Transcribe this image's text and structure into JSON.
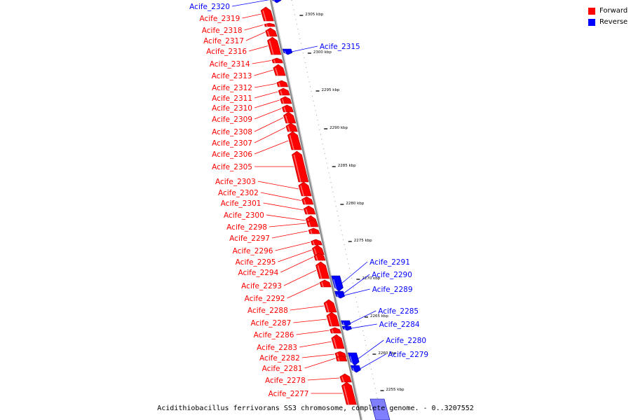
{
  "caption": "Acidithiobacillus ferrivorans SS3 chromosome, complete genome. - 0..3207552",
  "legend": [
    {
      "label": "Forward",
      "color": "#ff0000"
    },
    {
      "label": "Reverse",
      "color": "#0000ff"
    }
  ],
  "colors": {
    "forward": "#ff0000",
    "reverse": "#0000ff",
    "backbone": "#808080"
  },
  "ticks": [
    "2305 kbp",
    "2300 kbp",
    "2295 kbp",
    "2290 kbp",
    "2285 kbp",
    "2280 kbp",
    "2275 kbp",
    "2270 kbp",
    "2265 kbp",
    "2260 kbp",
    "2255 kbp"
  ],
  "genes": [
    {
      "name": "Acife_2320",
      "strand": "reverse"
    },
    {
      "name": "Acife_2319",
      "strand": "forward"
    },
    {
      "name": "Acife_2318",
      "strand": "forward"
    },
    {
      "name": "Acife_2317",
      "strand": "forward"
    },
    {
      "name": "Acife_2316",
      "strand": "forward"
    },
    {
      "name": "Acife_2315",
      "strand": "reverse"
    },
    {
      "name": "Acife_2314",
      "strand": "forward"
    },
    {
      "name": "Acife_2313",
      "strand": "forward"
    },
    {
      "name": "Acife_2312",
      "strand": "forward"
    },
    {
      "name": "Acife_2311",
      "strand": "forward"
    },
    {
      "name": "Acife_2310",
      "strand": "forward"
    },
    {
      "name": "Acife_2309",
      "strand": "forward"
    },
    {
      "name": "Acife_2308",
      "strand": "forward"
    },
    {
      "name": "Acife_2307",
      "strand": "forward"
    },
    {
      "name": "Acife_2306",
      "strand": "forward"
    },
    {
      "name": "Acife_2305",
      "strand": "forward"
    },
    {
      "name": "Acife_2303",
      "strand": "forward"
    },
    {
      "name": "Acife_2302",
      "strand": "forward"
    },
    {
      "name": "Acife_2301",
      "strand": "forward"
    },
    {
      "name": "Acife_2300",
      "strand": "forward"
    },
    {
      "name": "Acife_2298",
      "strand": "forward"
    },
    {
      "name": "Acife_2297",
      "strand": "forward"
    },
    {
      "name": "Acife_2296",
      "strand": "forward"
    },
    {
      "name": "Acife_2295",
      "strand": "forward"
    },
    {
      "name": "Acife_2294",
      "strand": "forward"
    },
    {
      "name": "Acife_2293",
      "strand": "forward"
    },
    {
      "name": "Acife_2292",
      "strand": "forward"
    },
    {
      "name": "Acife_2291",
      "strand": "reverse"
    },
    {
      "name": "Acife_2290",
      "strand": "reverse"
    },
    {
      "name": "Acife_2289",
      "strand": "reverse"
    },
    {
      "name": "Acife_2288",
      "strand": "forward"
    },
    {
      "name": "Acife_2287",
      "strand": "forward"
    },
    {
      "name": "Acife_2286",
      "strand": "forward"
    },
    {
      "name": "Acife_2285",
      "strand": "reverse"
    },
    {
      "name": "Acife_2284",
      "strand": "reverse"
    },
    {
      "name": "Acife_2283",
      "strand": "forward"
    },
    {
      "name": "Acife_2282",
      "strand": "forward"
    },
    {
      "name": "Acife_2281",
      "strand": "forward"
    },
    {
      "name": "Acife_2280",
      "strand": "reverse"
    },
    {
      "name": "Acife_2279",
      "strand": "reverse"
    },
    {
      "name": "Acife_2278",
      "strand": "forward"
    },
    {
      "name": "Acife_2277",
      "strand": "forward"
    }
  ]
}
